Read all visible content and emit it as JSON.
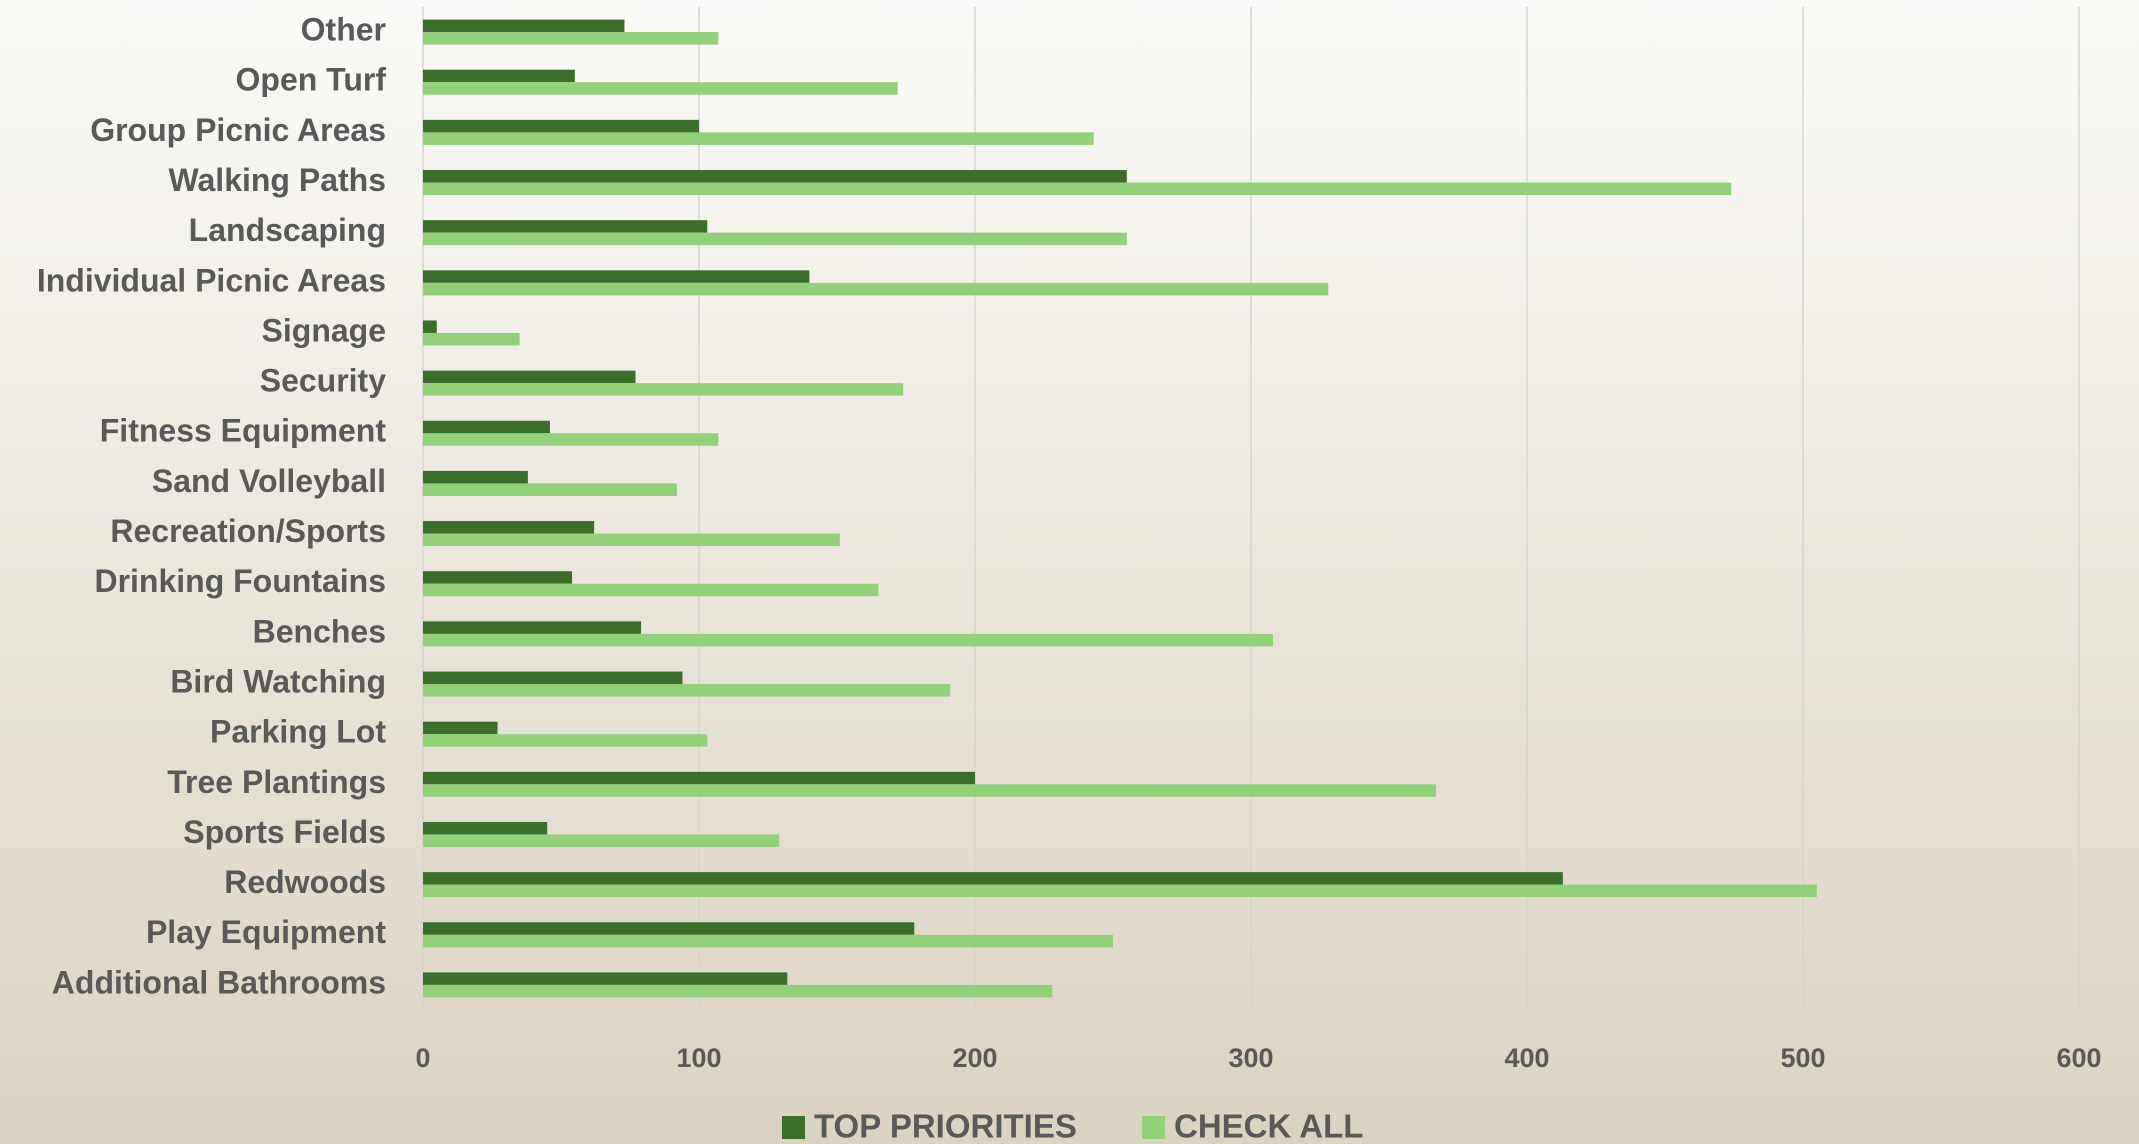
{
  "chart_data": {
    "type": "bar",
    "orientation": "horizontal",
    "categories": [
      "Other",
      "Open Turf",
      "Group Picnic Areas",
      "Walking Paths",
      "Landscaping",
      "Individual Picnic Areas",
      "Signage",
      "Security",
      "Fitness Equipment",
      "Sand Volleyball",
      "Recreation/Sports",
      "Drinking Fountains",
      "Benches",
      "Bird Watching",
      "Parking Lot",
      "Tree Plantings",
      "Sports Fields",
      "Redwoods",
      "Play Equipment",
      "Additional Bathrooms"
    ],
    "series": [
      {
        "name": "TOP PRIORITIES",
        "color": "#3b6e2b",
        "values": [
          73,
          55,
          100,
          255,
          103,
          140,
          5,
          77,
          46,
          38,
          62,
          54,
          79,
          94,
          27,
          200,
          45,
          413,
          178,
          132
        ]
      },
      {
        "name": "CHECK ALL",
        "color": "#92d07a",
        "values": [
          107,
          172,
          243,
          474,
          255,
          328,
          35,
          174,
          107,
          92,
          151,
          165,
          308,
          191,
          103,
          367,
          129,
          505,
          250,
          228
        ]
      }
    ],
    "xlim": [
      0,
      600
    ],
    "xticks": [
      0,
      100,
      200,
      300,
      400,
      500,
      600
    ],
    "grid": true,
    "legend": "bottom"
  }
}
